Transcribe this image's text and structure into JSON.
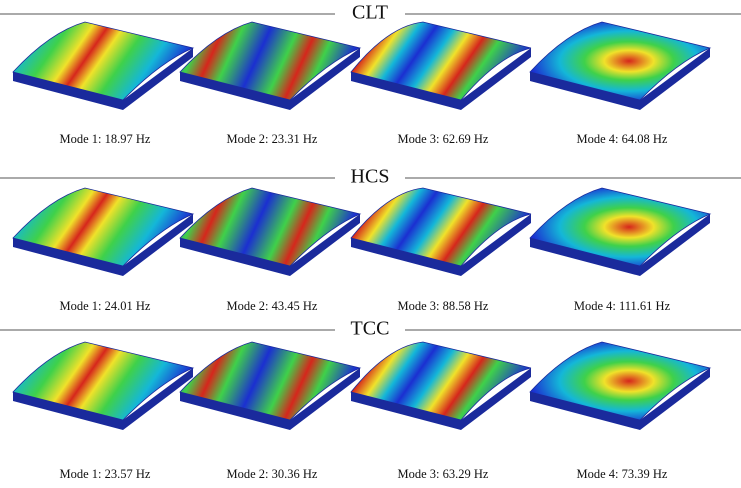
{
  "sections": [
    {
      "title": "CLT",
      "modes": [
        "Mode 1: 18.97 Hz",
        "Mode 2: 23.31 Hz",
        "Mode 3: 62.69 Hz",
        "Mode 4: 64.08 Hz"
      ]
    },
    {
      "title": "HCS",
      "modes": [
        "Mode 1: 24.01 Hz",
        "Mode 2: 43.45 Hz",
        "Mode 3: 88.58 Hz",
        "Mode 4: 111.61 Hz"
      ]
    },
    {
      "title": "TCC",
      "modes": [
        "Mode 1: 23.57 Hz",
        "Mode 2: 30.36 Hz",
        "Mode 3: 63.29 Hz",
        "Mode 4: 73.39 Hz"
      ]
    }
  ]
}
